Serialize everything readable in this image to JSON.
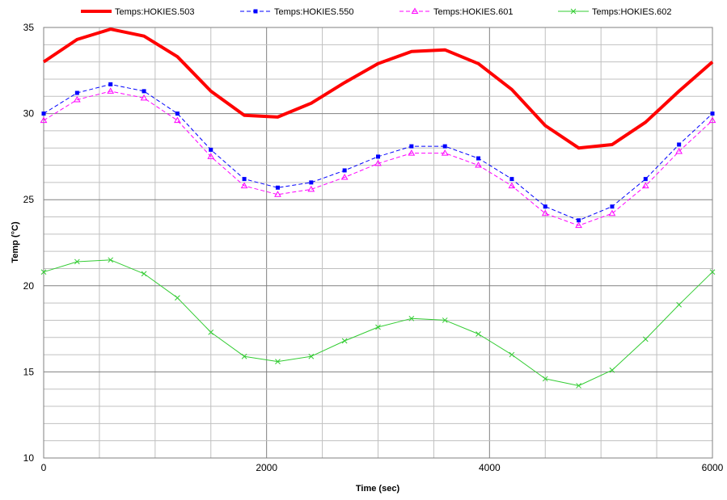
{
  "chart_data": {
    "type": "line",
    "xlabel": "Time (sec)",
    "ylabel": "Temp (°C)",
    "xlim": [
      0,
      6000
    ],
    "ylim": [
      10,
      35
    ],
    "xticks": [
      0,
      2000,
      4000,
      6000
    ],
    "yticks": [
      10,
      15,
      20,
      25,
      30,
      35
    ],
    "grid": true,
    "legend_position": "top",
    "x": [
      0,
      300,
      600,
      900,
      1200,
      1500,
      1800,
      2100,
      2400,
      2700,
      3000,
      3300,
      3600,
      3900,
      4200,
      4500,
      4800,
      5100,
      5400,
      5700,
      6000
    ],
    "series": [
      {
        "name": "Temps:HOKIES.503",
        "color": "#ff0000",
        "marker": "none",
        "dash": "solid",
        "values": [
          33.0,
          34.3,
          34.9,
          34.5,
          33.3,
          31.3,
          29.9,
          29.8,
          30.6,
          31.8,
          32.9,
          33.6,
          33.7,
          32.9,
          31.4,
          29.3,
          28.0,
          28.2,
          29.5,
          31.3,
          33.0
        ]
      },
      {
        "name": "Temps:HOKIES.550",
        "color": "#0000ff",
        "marker": "square",
        "dash": "dashed",
        "values": [
          30.0,
          31.2,
          31.7,
          31.3,
          30.0,
          27.9,
          26.2,
          25.7,
          26.0,
          26.7,
          27.5,
          28.1,
          28.1,
          27.4,
          26.2,
          24.6,
          23.8,
          24.6,
          26.2,
          28.2,
          30.0
        ]
      },
      {
        "name": "Temps:HOKIES.601",
        "color": "#ff00ff",
        "marker": "triangle",
        "dash": "dashed",
        "values": [
          29.6,
          30.8,
          31.3,
          30.9,
          29.6,
          27.5,
          25.8,
          25.3,
          25.6,
          26.3,
          27.1,
          27.7,
          27.7,
          27.0,
          25.8,
          24.2,
          23.5,
          24.2,
          25.8,
          27.8,
          29.6
        ]
      },
      {
        "name": "Temps:HOKIES.602",
        "color": "#33cc33",
        "marker": "x",
        "dash": "solid",
        "values": [
          20.8,
          21.4,
          21.5,
          20.7,
          19.3,
          17.3,
          15.9,
          15.6,
          15.9,
          16.8,
          17.6,
          18.1,
          18.0,
          17.2,
          16.0,
          14.6,
          14.2,
          15.1,
          16.9,
          18.9,
          20.8
        ]
      }
    ]
  }
}
